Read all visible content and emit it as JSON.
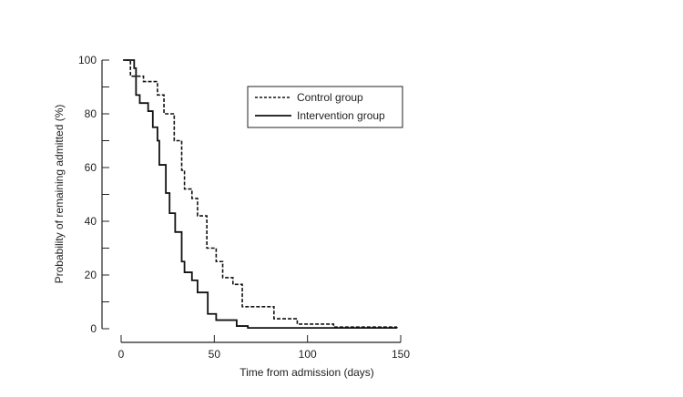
{
  "chart_data": {
    "type": "line",
    "title": "",
    "xlabel": "Time from admission (days)",
    "ylabel": "Probability of remaining admitted (%)",
    "xlim": [
      0,
      150
    ],
    "ylim": [
      0,
      100
    ],
    "xticks": [
      0,
      50,
      100,
      150
    ],
    "yticks": [
      0,
      20,
      40,
      60,
      80,
      100
    ],
    "grid": false,
    "legend_position": "top-right",
    "series": [
      {
        "name": "Control group",
        "style": "dashed",
        "color": "#111111",
        "x": [
          2.5,
          5,
          12,
          19.5,
          23,
          28.5,
          32.5,
          34,
          38,
          41,
          46,
          51,
          54.5,
          60,
          65,
          82,
          94.5,
          114,
          148
        ],
        "y": [
          100,
          94,
          92,
          87,
          80,
          70,
          59,
          52,
          48.5,
          42,
          30,
          25,
          19,
          16.5,
          8.2,
          3.7,
          1.7,
          0.6,
          0.6
        ]
      },
      {
        "name": "Intervention group",
        "style": "solid",
        "color": "#111111",
        "x": [
          1,
          7,
          8,
          10,
          14.5,
          17,
          19.5,
          20.5,
          24,
          26,
          29,
          32.5,
          34,
          38,
          41,
          46.5,
          51,
          62,
          68,
          148
        ],
        "y": [
          100,
          97,
          87,
          84,
          81,
          75,
          70,
          61,
          50.5,
          43,
          36,
          25,
          21,
          18,
          13.5,
          5.5,
          3.2,
          1.0,
          0.3,
          0.2
        ]
      }
    ]
  }
}
